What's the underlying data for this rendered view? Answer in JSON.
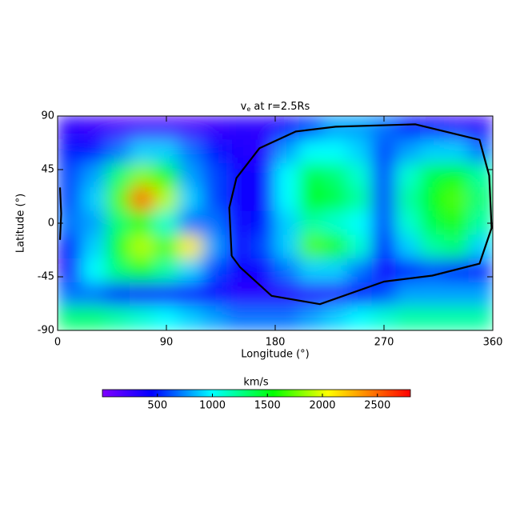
{
  "chart_data": {
    "type": "heatmap",
    "title": {
      "main": "v",
      "sub": "e",
      "rest": " at r=2.5Rs"
    },
    "xlabel": "Longitude (°)",
    "ylabel": "Latitude (°)",
    "xlim": [
      0,
      360
    ],
    "ylim": [
      -90,
      90
    ],
    "xticks": [
      0,
      90,
      180,
      270,
      360
    ],
    "yticks": [
      -90,
      -45,
      0,
      45,
      90
    ],
    "x": [
      10,
      30,
      50,
      70,
      90,
      110,
      130,
      150,
      170,
      190,
      210,
      230,
      250,
      270,
      290,
      310,
      330,
      350
    ],
    "y": [
      80,
      60,
      40,
      20,
      0,
      -20,
      -40,
      -60,
      -80
    ],
    "values": [
      [
        300,
        250,
        200,
        200,
        200,
        200,
        250,
        300,
        300,
        400,
        600,
        800,
        800,
        700,
        500,
        400,
        300,
        300
      ],
      [
        500,
        500,
        700,
        900,
        900,
        700,
        500,
        350,
        300,
        800,
        1000,
        1000,
        900,
        600,
        800,
        900,
        900,
        700
      ],
      [
        600,
        800,
        1300,
        1800,
        1500,
        800,
        600,
        400,
        400,
        1000,
        1400,
        1300,
        1100,
        600,
        1100,
        1400,
        1500,
        1200
      ],
      [
        600,
        900,
        1700,
        2500,
        1900,
        900,
        600,
        400,
        400,
        1000,
        1500,
        1400,
        1200,
        600,
        1200,
        1500,
        1700,
        1300
      ],
      [
        700,
        800,
        1300,
        1600,
        1100,
        700,
        700,
        400,
        500,
        900,
        1200,
        1100,
        1000,
        600,
        1100,
        1400,
        1600,
        1200
      ],
      [
        500,
        900,
        1500,
        1900,
        1700,
        2100,
        800,
        400,
        600,
        900,
        1700,
        1600,
        1100,
        500,
        900,
        1200,
        1300,
        900
      ],
      [
        400,
        1000,
        1300,
        1500,
        1200,
        900,
        600,
        400,
        400,
        700,
        900,
        900,
        700,
        400,
        500,
        600,
        500,
        400
      ],
      [
        700,
        700,
        500,
        400,
        400,
        400,
        400,
        300,
        300,
        300,
        300,
        300,
        400,
        600,
        800,
        800,
        800,
        800
      ],
      [
        1300,
        1300,
        1200,
        1100,
        1000,
        900,
        800,
        700,
        700,
        700,
        800,
        900,
        1000,
        1100,
        1200,
        1200,
        1200,
        1200
      ]
    ],
    "colormap": [
      {
        "value": 0,
        "color": "#8000ff"
      },
      {
        "value": 450,
        "color": "#0000ff"
      },
      {
        "value": 1000,
        "color": "#00ffff"
      },
      {
        "value": 1550,
        "color": "#00ff00"
      },
      {
        "value": 2050,
        "color": "#ffff00"
      },
      {
        "value": 2800,
        "color": "#ff0000"
      }
    ],
    "colorbar": {
      "label": "km/s",
      "lim": [
        0,
        2800
      ],
      "ticks": [
        500,
        1000,
        1500,
        2000,
        2500
      ]
    },
    "contour": {
      "color": "#000000",
      "x": [
        144,
        142,
        148,
        167,
        197,
        230,
        296,
        349,
        357,
        359,
        349,
        310,
        270,
        217,
        177,
        151,
        144,
        null,
        2,
        3,
        2
      ],
      "y": [
        -27.5,
        13,
        38,
        63,
        77,
        81,
        83,
        70,
        40,
        -4,
        -34,
        -44,
        -49,
        -68,
        -61,
        -37,
        -27.5,
        null,
        30,
        8,
        -14
      ]
    }
  }
}
